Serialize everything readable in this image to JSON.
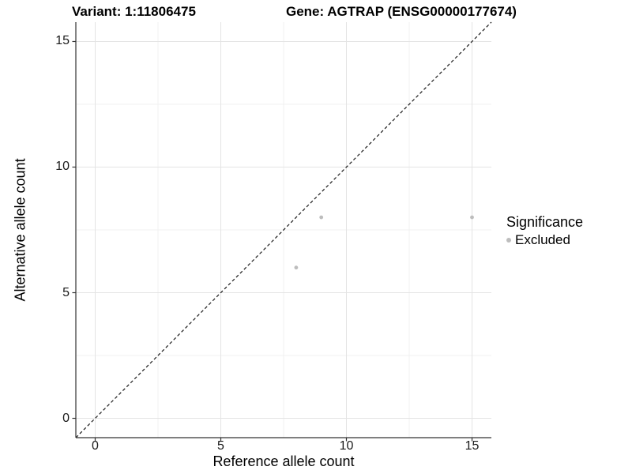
{
  "chart_data": {
    "type": "scatter",
    "title_left": "Variant: 1:11806475",
    "title_right": "Gene: AGTRAP (ENSG00000177674)",
    "xlabel": "Reference allele count",
    "ylabel": "Alternative allele count",
    "x_ticks": [
      0,
      5,
      10,
      15
    ],
    "y_ticks": [
      0,
      5,
      10,
      15
    ],
    "minor_ticks": [
      2.5,
      7.5,
      12.5
    ],
    "xlim": [
      0,
      15
    ],
    "ylim": [
      0,
      15
    ],
    "axis_domain": [
      -0.77,
      15.77
    ],
    "grid": true,
    "reference_line": {
      "type": "identity y=x",
      "style": "dashed",
      "color": "#1a1a1a"
    },
    "series": [
      {
        "name": "Excluded",
        "marker": "circle",
        "color": "#bdbdbd",
        "points": [
          {
            "x": 9,
            "y": 8
          },
          {
            "x": 15,
            "y": 8
          },
          {
            "x": 8,
            "y": 6
          }
        ]
      }
    ],
    "legend": {
      "title": "Significance",
      "position": "right",
      "items": [
        {
          "label": "Excluded",
          "marker": "circle",
          "color": "#bdbdbd"
        }
      ]
    },
    "colors": {
      "background": "#ffffff",
      "axis": "#333333",
      "grid_major": "#e4e4e4",
      "grid_minor": "#f1f1f1",
      "tick_text": "#1a1a1a"
    }
  }
}
